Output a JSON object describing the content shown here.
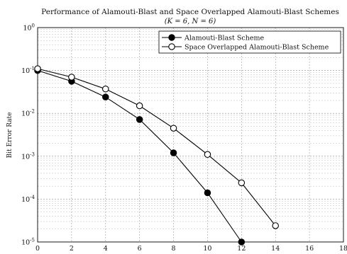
{
  "chart_data": {
    "type": "line",
    "title": "Performance of Alamouti-Blast and Space Overlapped Alamouti-Blast Schemes",
    "subtitle": "(K = 6, N = 6)",
    "xlabel": "",
    "ylabel": "Bit Error Rate",
    "xlim": [
      0,
      18
    ],
    "ylim": [
      1e-05,
      1
    ],
    "yscale": "log",
    "grid": true,
    "legend_position": "top-right",
    "xticks": [
      "0",
      "2",
      "4",
      "6",
      "8",
      "10",
      "12",
      "14",
      "16",
      "18"
    ],
    "yticks": [
      {
        "base": "10",
        "exp": "0"
      },
      {
        "base": "10",
        "exp": "-1"
      },
      {
        "base": "10",
        "exp": "-2"
      },
      {
        "base": "10",
        "exp": "-3"
      },
      {
        "base": "10",
        "exp": "-4"
      },
      {
        "base": "10",
        "exp": "-5"
      }
    ],
    "series": [
      {
        "name": "Alamouti-Blast Scheme",
        "marker": "filled-circle",
        "color": "#000000",
        "x": [
          0,
          2,
          4,
          6,
          8,
          10,
          12
        ],
        "y": [
          0.1,
          0.056,
          0.024,
          0.0072,
          0.0012,
          0.00014,
          1e-05
        ]
      },
      {
        "name": "Space Overlapped Alamouti-Blast Scheme",
        "marker": "open-circle",
        "color": "#000000",
        "x": [
          0,
          2,
          4,
          6,
          8,
          10,
          12,
          14
        ],
        "y": [
          0.11,
          0.07,
          0.037,
          0.015,
          0.0045,
          0.0011,
          0.00024,
          2.4e-05
        ]
      }
    ]
  }
}
